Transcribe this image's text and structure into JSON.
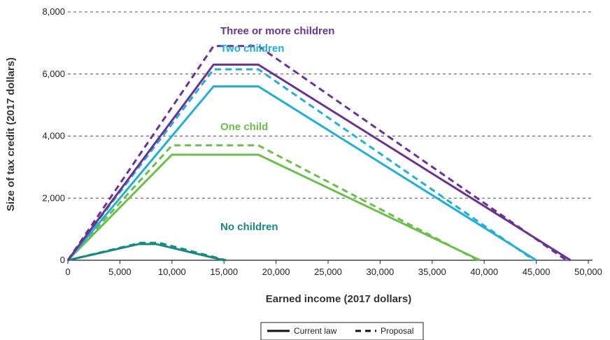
{
  "chart_data": {
    "type": "line",
    "xlabel": "Earned income (2017 dollars)",
    "ylabel": "Size of tax credit (2017 dollars)",
    "xlim": [
      0,
      50000
    ],
    "ylim": [
      0,
      8000
    ],
    "x_ticks": [
      "0",
      "5,000",
      "10,000",
      "15,000",
      "20,000",
      "25,000",
      "30,000",
      "35,000",
      "40,000",
      "45,000",
      "50,000"
    ],
    "y_ticks": [
      "0",
      "2,000",
      "4,000",
      "6,000",
      "8,000"
    ],
    "grid": "horizontal dashed",
    "legend": {
      "position": "bottom-center",
      "entries": [
        {
          "label": "Current law",
          "style": "solid"
        },
        {
          "label": "Proposal",
          "style": "dashed"
        }
      ]
    },
    "groups": [
      {
        "label": "No children",
        "color": "#168a80",
        "series": [
          {
            "name": "Current law",
            "style": "solid",
            "points": [
              [
                0,
                0
              ],
              [
                6800,
                520
              ],
              [
                8500,
                520
              ],
              [
                15000,
                0
              ]
            ]
          },
          {
            "name": "Proposal",
            "style": "dashed",
            "points": [
              [
                0,
                0
              ],
              [
                7000,
                560
              ],
              [
                8800,
                560
              ],
              [
                15200,
                0
              ]
            ]
          }
        ]
      },
      {
        "label": "One child",
        "color": "#6cbf4b",
        "series": [
          {
            "name": "Current law",
            "style": "solid",
            "points": [
              [
                0,
                0
              ],
              [
                10000,
                3400
              ],
              [
                18300,
                3400
              ],
              [
                39600,
                0
              ]
            ]
          },
          {
            "name": "Proposal",
            "style": "dashed",
            "points": [
              [
                0,
                0
              ],
              [
                10000,
                3700
              ],
              [
                18300,
                3700
              ],
              [
                39400,
                0
              ]
            ]
          }
        ]
      },
      {
        "label": "Two children",
        "color": "#1fb0d8",
        "series": [
          {
            "name": "Current law",
            "style": "solid",
            "points": [
              [
                0,
                0
              ],
              [
                14000,
                5600
              ],
              [
                18300,
                5600
              ],
              [
                45000,
                0
              ]
            ]
          },
          {
            "name": "Proposal",
            "style": "dashed",
            "points": [
              [
                0,
                0
              ],
              [
                14000,
                6150
              ],
              [
                18300,
                6150
              ],
              [
                44800,
                0
              ]
            ]
          }
        ]
      },
      {
        "label": "Three or more children",
        "color": "#6a3393",
        "series": [
          {
            "name": "Current law",
            "style": "solid",
            "points": [
              [
                0,
                0
              ],
              [
                14000,
                6300
              ],
              [
                18300,
                6300
              ],
              [
                48300,
                0
              ]
            ]
          },
          {
            "name": "Proposal",
            "style": "dashed",
            "points": [
              [
                0,
                0
              ],
              [
                14000,
                6900
              ],
              [
                18300,
                6900
              ],
              [
                47900,
                0
              ]
            ]
          }
        ]
      }
    ]
  }
}
